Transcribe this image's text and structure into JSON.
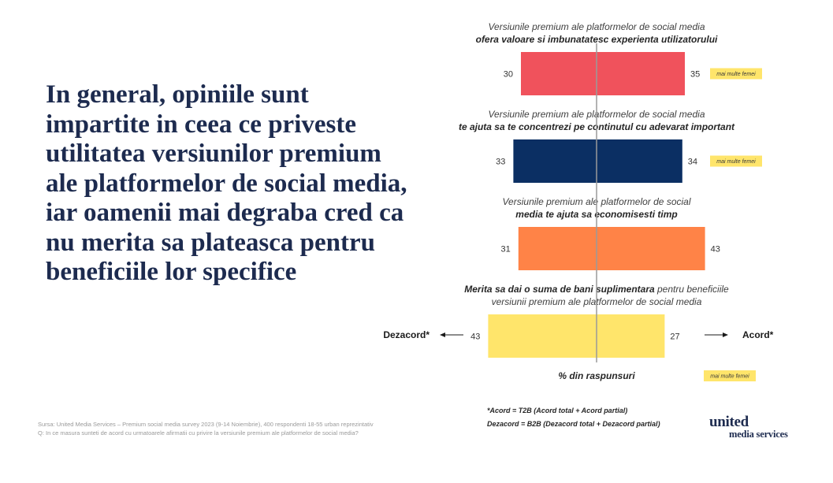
{
  "headline": "In general, opiniile sunt impartite in ceea ce priveste utilitatea versiunilor premium ale platformelor de social media, iar oamenii mai degraba cred ca nu merita sa plateasca pentru beneficiile lor specifice",
  "source": {
    "line1": "Sursa: United Media Services – Premium social media survey 2023 (9-14 Noiembrie), 400 respondenti 18-55 urban reprezintativ",
    "line2": "Q: In ce masura sunteti de acord cu urmatoarele afirmatii cu privire la versiunile premium ale platformelor de social media?"
  },
  "logo": {
    "line1": "united",
    "line2": "media services"
  },
  "chart_data": {
    "type": "bar",
    "orientation": "horizontal-diverging",
    "xlabel": "% din raspunsuri",
    "left_label": "Dezacord*",
    "right_label": "Acord*",
    "categories": [
      {
        "lines": [
          {
            "segments": [
              {
                "text": "Versiunile premium ale platformelor de social media",
                "bold": false
              }
            ]
          },
          {
            "segments": [
              {
                "text": "ofera valoare si imbunatatesc experienta utilizatorului",
                "bold": true
              }
            ]
          }
        ],
        "disagree": 30,
        "agree": 35,
        "color": "#f0525c",
        "note": "mai multe femei"
      },
      {
        "lines": [
          {
            "segments": [
              {
                "text": "Versiunile premium ale platformelor de social media",
                "bold": false
              }
            ]
          },
          {
            "segments": [
              {
                "text": "te ajuta sa te concentrezi pe continutul cu adevarat important",
                "bold": true
              }
            ]
          }
        ],
        "disagree": 33,
        "agree": 34,
        "color": "#0b2f63",
        "note": "mai multe femei"
      },
      {
        "lines": [
          {
            "segments": [
              {
                "text": "Versiunile premium ale platformelor de social",
                "bold": false
              }
            ]
          },
          {
            "segments": [
              {
                "text": "media te ajuta sa economisesti timp",
                "bold": true
              }
            ]
          }
        ],
        "disagree": 31,
        "agree": 43,
        "color": "#ff8347",
        "note": ""
      },
      {
        "lines": [
          {
            "segments": [
              {
                "text": "Merita sa dai o suma de bani suplimentara",
                "bold": true
              },
              {
                "text": " pentru beneficiile",
                "bold": false
              }
            ]
          },
          {
            "segments": [
              {
                "text": "versiunii premium ale platformelor de social media",
                "bold": false
              }
            ]
          }
        ],
        "disagree": 43,
        "agree": 27,
        "color": "#ffe56b",
        "note": "mai multe femei"
      }
    ],
    "footnotes": [
      "*Acord =  T2B (Acord total + Acord partial)",
      "Dezacord = B2B (Dezacord total + Dezacord partial)"
    ],
    "colors": {
      "note_bg": "#ffe56b",
      "center_line": "#9a9a9a"
    }
  }
}
